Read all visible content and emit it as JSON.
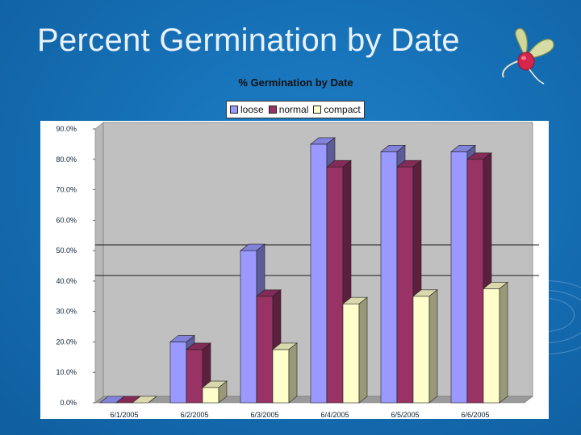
{
  "slide": {
    "title": "Percent Germination by Date"
  },
  "colors": {
    "loose": "#9999ff",
    "normal": "#993366",
    "compact": "#ffffcc",
    "plot_bg": "#c0c0c0"
  },
  "chart_data": {
    "type": "bar",
    "title": "% Germination by Date",
    "categories": [
      "6/1/2005",
      "6/2/2005",
      "6/3/2005",
      "6/4/2005",
      "6/5/2005",
      "6/6/2005"
    ],
    "series": [
      {
        "name": "loose",
        "values": [
          0.0,
          20.0,
          50.0,
          85.0,
          82.5,
          82.5
        ]
      },
      {
        "name": "normal",
        "values": [
          0.0,
          17.5,
          35.0,
          77.5,
          77.5,
          80.0
        ]
      },
      {
        "name": "compact",
        "values": [
          0.0,
          5.0,
          17.5,
          32.5,
          35.0,
          37.5
        ]
      }
    ],
    "y_ticks": [
      "0.0%",
      "10.0%",
      "20.0%",
      "30.0%",
      "40.0%",
      "50.0%",
      "60.0%",
      "70.0%",
      "80.0%",
      "90.0%"
    ],
    "ylim": [
      0,
      90
    ],
    "legend_position": "top",
    "grid": false,
    "style": "3d-column"
  }
}
